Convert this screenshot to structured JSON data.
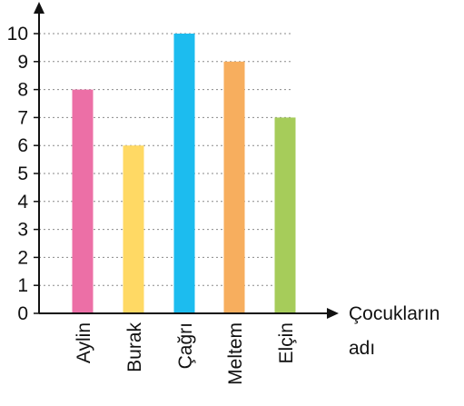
{
  "chart_data": {
    "type": "bar",
    "categories": [
      "Aylin",
      "Burak",
      "Çağrı",
      "Meltem",
      "Elçin"
    ],
    "values": [
      8,
      6,
      10,
      9,
      7
    ],
    "colors": [
      "#ec6fa6",
      "#ffd964",
      "#1cbcef",
      "#f7ae5e",
      "#a6cc5a"
    ],
    "xlabel": [
      "Çocukların",
      "adı"
    ],
    "ylabel": "",
    "ylim": [
      0,
      10
    ],
    "yticks": [
      0,
      1,
      2,
      3,
      4,
      5,
      6,
      7,
      8,
      9,
      10
    ],
    "grid": "dotted-horizontal"
  }
}
